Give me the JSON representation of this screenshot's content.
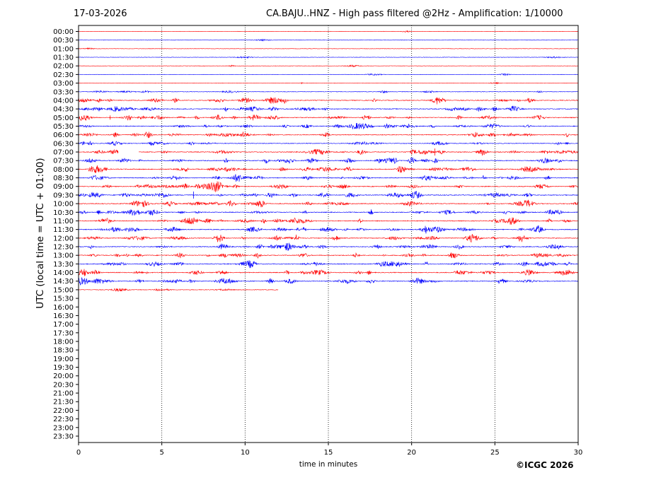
{
  "header": {
    "date": "17-03-2026",
    "title": "CA.BAJU..HNZ - High pass filtered @2Hz - Amplification: 1/10000"
  },
  "footer": {
    "credit": "©ICGC 2026"
  },
  "chart_data": {
    "type": "line",
    "title": "CA.BAJU..HNZ - High pass filtered @2Hz - Amplification: 1/10000",
    "xlabel": "time in minutes",
    "ylabel": "UTC (local time = UTC + 01:00)",
    "xlim": [
      0,
      30
    ],
    "x_ticks": [
      "0",
      "5",
      "10",
      "15",
      "20",
      "25",
      "30"
    ],
    "y_ticks": [
      "00:00",
      "00:30",
      "01:00",
      "01:30",
      "02:00",
      "02:30",
      "03:00",
      "03:30",
      "04:00",
      "04:30",
      "05:00",
      "05:30",
      "06:00",
      "06:30",
      "07:00",
      "07:30",
      "08:00",
      "08:30",
      "09:00",
      "09:30",
      "10:00",
      "10:30",
      "11:00",
      "11:30",
      "12:00",
      "12:30",
      "13:00",
      "13:30",
      "14:00",
      "14:30",
      "15:00",
      "15:30",
      "16:00",
      "16:30",
      "17:00",
      "17:30",
      "18:00",
      "18:30",
      "19:00",
      "19:30",
      "20:00",
      "20:30",
      "21:00",
      "21:30",
      "22:00",
      "22:30",
      "23:00",
      "23:30"
    ],
    "grid": "vertical dotted lines at 5-minute intervals",
    "colors": {
      "even_rows": "#ff0000",
      "odd_rows": "#0000ff"
    },
    "recorded_rows": 31,
    "last_row_end_minute": 12,
    "gap_row": "07:00",
    "gap_minutes": [
      2.4,
      3.6
    ],
    "activity_level": [
      0.05,
      0.05,
      0.05,
      0.06,
      0.06,
      0.06,
      0.07,
      0.25,
      0.7,
      0.75,
      0.8,
      0.7,
      0.75,
      0.55,
      0.8,
      0.85,
      0.85,
      0.8,
      0.75,
      0.85,
      0.8,
      0.8,
      0.8,
      0.75,
      0.75,
      0.75,
      0.8,
      0.75,
      0.8,
      0.8,
      0.4
    ]
  }
}
